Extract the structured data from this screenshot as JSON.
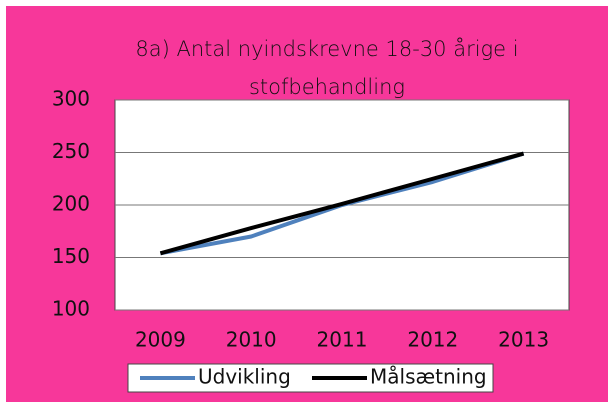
{
  "chart_data": {
    "type": "line",
    "title": "8a) Antal nyindskrevne 18-30 årige i stofbehandling",
    "categories": [
      "2009",
      "2010",
      "2011",
      "2012",
      "2013"
    ],
    "series": [
      {
        "name": "Udvikling",
        "color": "#4f81bd",
        "values": [
          154,
          170,
          200,
          222,
          249
        ]
      },
      {
        "name": "Målsætning",
        "color": "#000000",
        "values": [
          154,
          178,
          201,
          225,
          249
        ]
      }
    ],
    "ylim": [
      100,
      300
    ],
    "yticks": [
      100,
      150,
      200,
      250,
      300
    ],
    "grid": true,
    "legend": "bottom",
    "background": "#f7379a"
  }
}
